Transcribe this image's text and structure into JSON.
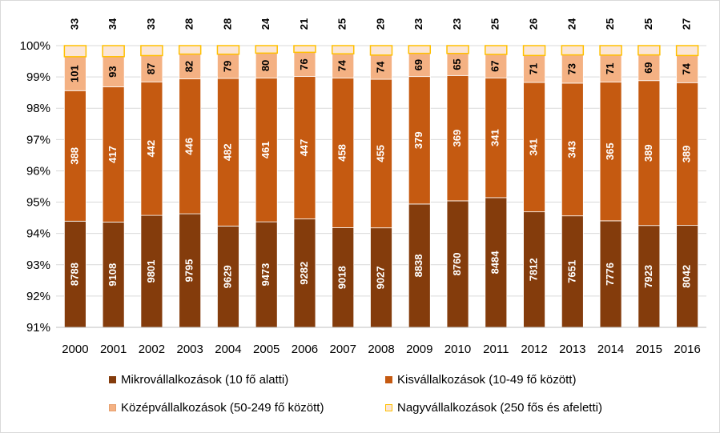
{
  "chart_data": {
    "type": "bar",
    "stacked": "percent",
    "categories": [
      "2000",
      "2001",
      "2002",
      "2003",
      "2004",
      "2005",
      "2006",
      "2007",
      "2008",
      "2009",
      "2010",
      "2011",
      "2012",
      "2013",
      "2014",
      "2015",
      "2016"
    ],
    "series": [
      {
        "name": "Mikrovállalkozások (10 fő alatti)",
        "color": "#843c0c",
        "values": [
          8788,
          9108,
          9801,
          9795,
          9629,
          9473,
          9282,
          9018,
          9027,
          8838,
          8760,
          8484,
          7812,
          7651,
          7776,
          7923,
          8042
        ]
      },
      {
        "name": "Kisvállalkozások (10-49 fő között)",
        "color": "#c55a11",
        "values": [
          388,
          417,
          442,
          446,
          482,
          461,
          447,
          458,
          455,
          379,
          369,
          341,
          341,
          343,
          365,
          389,
          389
        ]
      },
      {
        "name": "Középvállalkozások (50-249 fő között)",
        "color": "#f4b183",
        "values": [
          101,
          93,
          87,
          82,
          79,
          80,
          76,
          74,
          74,
          69,
          65,
          67,
          71,
          73,
          71,
          69,
          74
        ]
      },
      {
        "name": "Nagyvállalkozások (250 fős és afeletti)",
        "color": "#fbe5d6",
        "edge": "#ffc000",
        "values": [
          33,
          34,
          33,
          28,
          28,
          24,
          21,
          25,
          29,
          23,
          23,
          25,
          26,
          24,
          25,
          25,
          27
        ]
      }
    ],
    "y_ticks": [
      "91%",
      "92%",
      "93%",
      "94%",
      "95%",
      "96%",
      "97%",
      "98%",
      "99%",
      "100%"
    ],
    "ylim": [
      0.91,
      1.0
    ],
    "grid": true,
    "legend": "bottom"
  }
}
